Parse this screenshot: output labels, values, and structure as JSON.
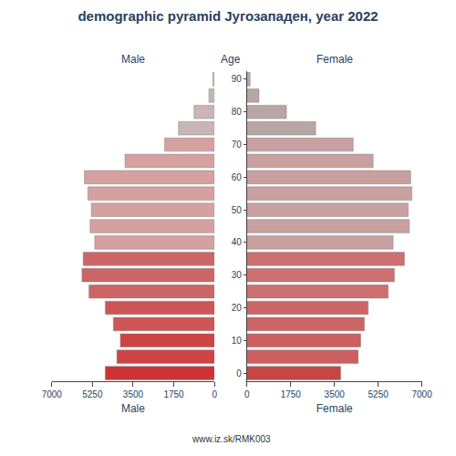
{
  "chart_data": {
    "type": "pyramid",
    "title": "demographic pyramid Југозападен, year 2022",
    "orientation": "horizontal",
    "categories": [
      "0",
      null,
      "10",
      null,
      "20",
      null,
      "30",
      null,
      "40",
      null,
      "50",
      null,
      "60",
      null,
      "70",
      null,
      "80",
      null,
      "90"
    ],
    "series": [
      {
        "name": "Male",
        "colors": [
          "#cd3333",
          "#cd4444",
          "#cd4444",
          "#cd5555",
          "#cd5555",
          "#cc6666",
          "#cc6666",
          "#cc6666",
          "#d4a0a0",
          "#d4a0a0",
          "#d4a0a0",
          "#d4a0a0",
          "#d4a0a0",
          "#d4a0a0",
          "#d4a0a0",
          "#c9b5b5",
          "#c9b5b5",
          "#c9b5b5",
          "#c9b5b5"
        ],
        "values": [
          4700,
          4200,
          4050,
          4350,
          4700,
          5400,
          5700,
          5650,
          5150,
          5350,
          5300,
          5450,
          5600,
          3850,
          2150,
          1550,
          880,
          240,
          75
        ]
      },
      {
        "name": "Female",
        "colors": [
          "#c84545",
          "#cc5f5f",
          "#cc5f5f",
          "#cc6565",
          "#cc6565",
          "#cc7070",
          "#cc7070",
          "#cc7070",
          "#c8a0a0",
          "#c8a0a0",
          "#c8a0a0",
          "#c8a0a0",
          "#c8a0a0",
          "#c8a0a0",
          "#c8a0a0",
          "#b8a5a5",
          "#b8a5a5",
          "#b8a5a5",
          "#b8a5a5"
        ],
        "values": [
          3750,
          4450,
          4550,
          4700,
          4850,
          5650,
          5900,
          6300,
          5850,
          6500,
          6450,
          6600,
          6550,
          5050,
          4250,
          2750,
          1580,
          480,
          125
        ]
      }
    ],
    "ylabel": "Age",
    "xlim": [
      0,
      7000
    ],
    "xticks": [
      0,
      1750,
      3500,
      5250,
      7000
    ],
    "grid": false,
    "annotations": [
      "www.iz.sk/RMK003"
    ]
  }
}
